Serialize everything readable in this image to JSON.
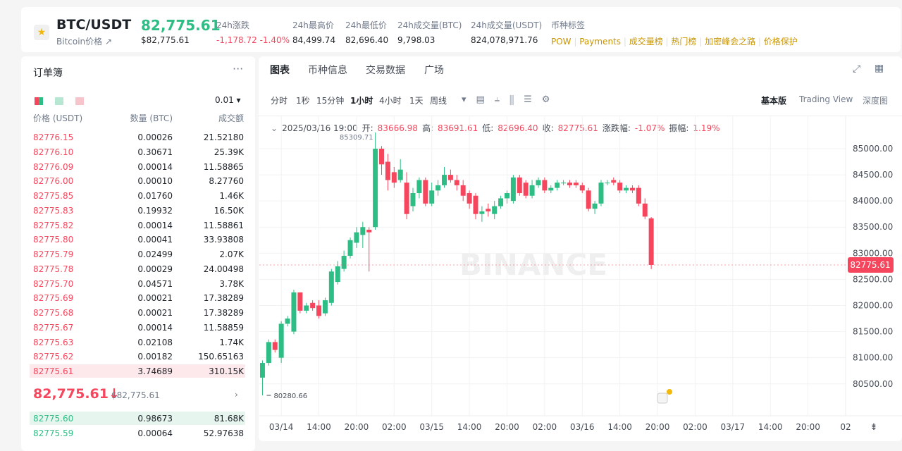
{
  "header": {
    "symbol": "BTC/USDT",
    "name": "Bitcoin价格",
    "price": "82,775.61",
    "price_usd": "$82,775.61",
    "stats": [
      {
        "label": "24h涨跌",
        "value": "-1,178.72 -1.40%"
      },
      {
        "label": "24h最高价",
        "value": "84,499.74"
      },
      {
        "label": "24h最低价",
        "value": "82,696.40"
      },
      {
        "label": "24h成交量(BTC)",
        "value": "9,798.03"
      },
      {
        "label": "24h成交量(USDT)",
        "value": "824,078,971.76"
      }
    ],
    "tags_label": "币种标签",
    "tags": [
      "POW",
      "Payments",
      "成交量榜",
      "热门榜",
      "加密峰会之路",
      "价格保护"
    ]
  },
  "orderbook": {
    "title": "订单簿",
    "precision": "0.01",
    "columns": [
      "价格 (USDT)",
      "数量 (BTC)",
      "成交额"
    ],
    "asks": [
      [
        "82776.15",
        "0.00026",
        "21.52180"
      ],
      [
        "82776.10",
        "0.30671",
        "25.39K"
      ],
      [
        "82776.09",
        "0.00014",
        "11.58865"
      ],
      [
        "82776.00",
        "0.00010",
        "8.27760"
      ],
      [
        "82775.85",
        "0.01760",
        "1.46K"
      ],
      [
        "82775.83",
        "0.19932",
        "16.50K"
      ],
      [
        "82775.82",
        "0.00014",
        "11.58861"
      ],
      [
        "82775.80",
        "0.00041",
        "33.93808"
      ],
      [
        "82775.79",
        "0.02499",
        "2.07K"
      ],
      [
        "82775.78",
        "0.00029",
        "24.00498"
      ],
      [
        "82775.70",
        "0.04571",
        "3.78K"
      ],
      [
        "82775.69",
        "0.00021",
        "17.38289"
      ],
      [
        "82775.68",
        "0.00021",
        "17.38289"
      ],
      [
        "82775.67",
        "0.00014",
        "11.58859"
      ],
      [
        "82775.63",
        "0.02108",
        "1.74K"
      ],
      [
        "82775.62",
        "0.00182",
        "150.65163"
      ],
      [
        "82775.61",
        "3.74689",
        "310.15K"
      ]
    ],
    "last": "82,775.61",
    "last_usd": "$82,775.61",
    "bids": [
      [
        "82775.60",
        "0.98673",
        "81.68K"
      ],
      [
        "82775.59",
        "0.00064",
        "52.97638"
      ]
    ]
  },
  "chart_tabs": [
    "图表",
    "币种信息",
    "交易数据",
    "广场"
  ],
  "intervals": [
    "分时",
    "1秒",
    "15分钟",
    "1小时",
    "4小时",
    "1天",
    "周线"
  ],
  "views": [
    "基本版",
    "Trading View",
    "深度图"
  ],
  "chart_data": {
    "type": "candlestick",
    "info": {
      "time": "2025/03/16 19:00",
      "items": [
        {
          "label": "开:",
          "value": "83666.98"
        },
        {
          "label": "高:",
          "value": "83691.61"
        },
        {
          "label": "低:",
          "value": "82696.40"
        },
        {
          "label": "收:",
          "value": "82775.61"
        },
        {
          "label": "涨跌幅:",
          "value": "-1.07%"
        },
        {
          "label": "振幅:",
          "value": "1.19%"
        }
      ]
    },
    "open": [
      80620,
      80900,
      81300,
      81000,
      81650,
      81500,
      82250,
      81900,
      82050,
      82000,
      81850,
      82050,
      82450,
      82700,
      82950,
      83200,
      83350,
      83450,
      83500,
      85000,
      84750,
      84550,
      84400,
      84350,
      83900,
      84150,
      84400,
      83950,
      84200,
      84300,
      84500,
      84400,
      84300,
      84150,
      84100,
      83750,
      83850,
      83750,
      83900,
      84050,
      84000,
      84450,
      84350,
      84100,
      84300,
      84400,
      84200,
      84250,
      84350,
      84350,
      84350,
      84300,
      84200,
      83850,
      83950,
      84350,
      84400,
      84350,
      84200,
      84250,
      84250,
      83950,
      83666.98
    ],
    "high": [
      80950,
      81350,
      81350,
      81700,
      81800,
      82300,
      82250,
      82050,
      82100,
      82100,
      82150,
      82700,
      82850,
      83050,
      83300,
      83500,
      83600,
      83500,
      85309.71,
      85050,
      84900,
      84650,
      84800,
      84550,
      84250,
      84450,
      84450,
      84350,
      84400,
      84650,
      84600,
      84500,
      84400,
      84200,
      84150,
      83900,
      83950,
      84000,
      84100,
      84200,
      84500,
      84500,
      84400,
      84400,
      84450,
      84450,
      84300,
      84400,
      84400,
      84400,
      84400,
      84350,
      84250,
      84000,
      84400,
      84400,
      84450,
      84400,
      84300,
      84300,
      84300,
      84050,
      83691.61
    ],
    "low": [
      80280.66,
      80850,
      81100,
      80900,
      81600,
      81450,
      81850,
      81850,
      81900,
      81750,
      81800,
      82000,
      82400,
      82650,
      82900,
      83100,
      83100,
      82650,
      83450,
      84500,
      84200,
      84250,
      84350,
      83650,
      83800,
      84050,
      83900,
      83900,
      84100,
      84250,
      84350,
      84200,
      84000,
      83850,
      83650,
      83600,
      83700,
      83650,
      83850,
      83950,
      83950,
      84100,
      84050,
      84050,
      84250,
      84150,
      84150,
      84200,
      84300,
      84250,
      84250,
      84150,
      83800,
      83750,
      83900,
      84300,
      84300,
      84150,
      84150,
      84150,
      83900,
      83650,
      82696.4
    ],
    "close": [
      80900,
      81300,
      81150,
      81650,
      81750,
      82250,
      81900,
      82000,
      81950,
      81800,
      82100,
      82650,
      82750,
      82950,
      83250,
      83400,
      83500,
      83400,
      85000,
      84700,
      84400,
      84350,
      84600,
      83750,
      84150,
      84400,
      83950,
      84200,
      84300,
      84500,
      84400,
      84300,
      84100,
      83950,
      83750,
      83800,
      83800,
      83900,
      84050,
      84150,
      84450,
      84150,
      84100,
      84300,
      84400,
      84200,
      84250,
      84350,
      84350,
      84300,
      84300,
      84200,
      83850,
      83950,
      84350,
      84350,
      84350,
      84200,
      84250,
      84200,
      83950,
      83700,
      82775.61
    ],
    "xlim": [
      -0.5,
      93
    ],
    "ylim": [
      79890,
      85620
    ],
    "xticks": [
      {
        "value": 3,
        "label": "03/14"
      },
      {
        "value": 9,
        "label": "14:00"
      },
      {
        "value": 15,
        "label": "20:00"
      },
      {
        "value": 21,
        "label": "02:00"
      },
      {
        "value": 27,
        "label": "03/15"
      },
      {
        "value": 33,
        "label": "14:00"
      },
      {
        "value": 39,
        "label": "20:00"
      },
      {
        "value": 45,
        "label": "02:00"
      },
      {
        "value": 51,
        "label": "03/16"
      },
      {
        "value": 57,
        "label": "14:00"
      },
      {
        "value": 63,
        "label": "20:00"
      },
      {
        "value": 69,
        "label": "02:00"
      },
      {
        "value": 75,
        "label": "03/17"
      },
      {
        "value": 81,
        "label": "14:00"
      },
      {
        "value": 87,
        "label": "20:00"
      },
      {
        "value": 93,
        "label": "02"
      }
    ],
    "yticks": [
      {
        "value": 80500,
        "label": "80500.00"
      },
      {
        "value": 81000,
        "label": "81000.00"
      },
      {
        "value": 81500,
        "label": "81500.00"
      },
      {
        "value": 82000,
        "label": "82000.00"
      },
      {
        "value": 82500,
        "label": "82500.00"
      },
      {
        "value": 83000,
        "label": "83000.00"
      },
      {
        "value": 83500,
        "label": "83500.00"
      },
      {
        "value": 84000,
        "label": "84000.00"
      },
      {
        "value": 84500,
        "label": "84500.00"
      },
      {
        "value": 85000,
        "label": "85000.00"
      }
    ],
    "last_price_label": 82775.61,
    "high_label": 85309.71,
    "low_label": 80280.66,
    "up_color": "#2ebd85",
    "down_color": "#f6465d",
    "grid": true,
    "watermark": "BINANCE"
  }
}
